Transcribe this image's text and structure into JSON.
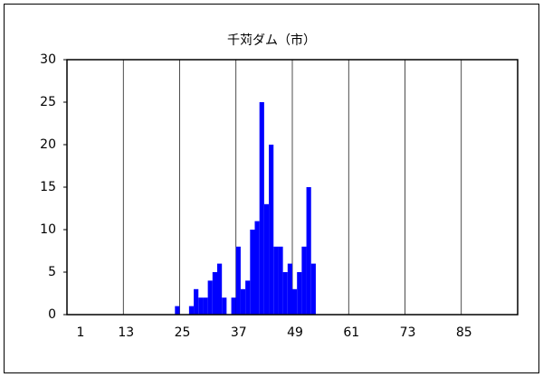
{
  "chart_data": {
    "type": "bar",
    "title": "千苅ダム（市）",
    "categories": [
      "1",
      null,
      null,
      null,
      null,
      null,
      null,
      null,
      null,
      null,
      null,
      null,
      "13",
      null,
      null,
      null,
      null,
      null,
      null,
      null,
      null,
      null,
      null,
      null,
      "25",
      null,
      null,
      null,
      null,
      null,
      null,
      null,
      null,
      null,
      null,
      null,
      "37",
      null,
      null,
      null,
      null,
      null,
      null,
      null,
      null,
      null,
      null,
      null,
      "49",
      null,
      null,
      null,
      null,
      null,
      null,
      null,
      null,
      null,
      null,
      null,
      "61",
      null,
      null,
      null,
      null,
      null,
      null,
      null,
      null,
      null,
      null,
      null,
      "73",
      null,
      null,
      null,
      null,
      null,
      null,
      null,
      null,
      null,
      null,
      null,
      "85",
      null,
      null,
      null,
      null,
      null,
      null,
      null,
      null,
      null,
      null,
      null
    ],
    "values": [
      0,
      0,
      0,
      0,
      0,
      0,
      0,
      0,
      0,
      0,
      0,
      0,
      0,
      0,
      0,
      0,
      0,
      0,
      0,
      0,
      0,
      0,
      0,
      1,
      0,
      0,
      1,
      3,
      2,
      2,
      4,
      5,
      6,
      2,
      0,
      2,
      8,
      3,
      4,
      10,
      11,
      25,
      13,
      20,
      8,
      8,
      5,
      6,
      3,
      5,
      8,
      15,
      6,
      0,
      0,
      0,
      0,
      0,
      0,
      0,
      0,
      0,
      0,
      0,
      0,
      0,
      0,
      0,
      0,
      0,
      0,
      0,
      0,
      0,
      0,
      0,
      0,
      0,
      0,
      0,
      0,
      0,
      0,
      0,
      0,
      0,
      0,
      0,
      0,
      0,
      0,
      0,
      0,
      0,
      0,
      0
    ],
    "color": "#0000ff",
    "ylim": [
      0,
      30
    ],
    "yticks": [
      0,
      5,
      10,
      15,
      20,
      25,
      30
    ],
    "grid": true
  }
}
